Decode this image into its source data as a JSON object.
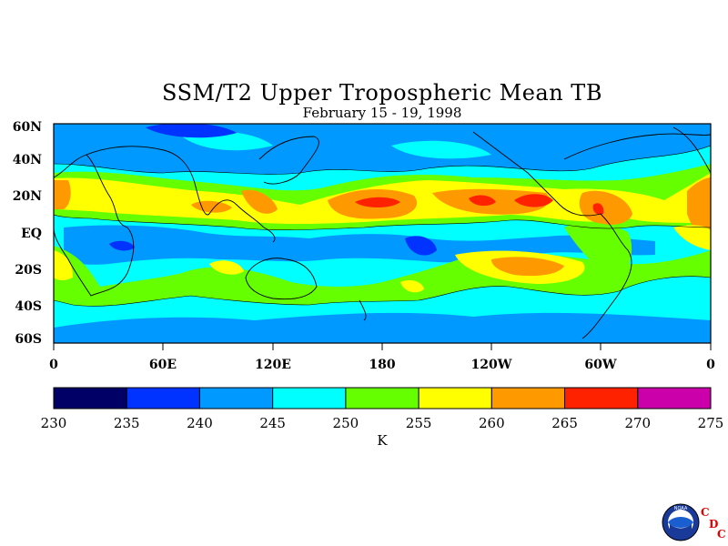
{
  "title": "SSM/T2 Upper Tropospheric Mean TB",
  "subtitle": "February 15 - 19, 1998",
  "chart_data": {
    "type": "heatmap",
    "title": "SSM/T2 Upper Tropospheric Mean TB",
    "subtitle": "February 15 - 19, 1998",
    "x_ticks": [
      "0",
      "60E",
      "120E",
      "180",
      "120W",
      "60W",
      "0"
    ],
    "y_ticks": [
      "60N",
      "40N",
      "20N",
      "EQ",
      "20S",
      "40S",
      "60S"
    ],
    "colorbar": {
      "levels": [
        230,
        235,
        240,
        245,
        250,
        255,
        260,
        265,
        270,
        275
      ],
      "labels": [
        "230",
        "235",
        "240",
        "245",
        "250",
        "255",
        "260",
        "265",
        "270",
        "275"
      ],
      "colors": [
        "#000066",
        "#0033ff",
        "#0099ff",
        "#00ffff",
        "#66ff00",
        "#ffff00",
        "#ff9900",
        "#ff2200",
        "#cc00aa"
      ],
      "unit": "K"
    }
  },
  "logo": {
    "icon": "noaa-logo-icon",
    "text": "NOAA",
    "letters": [
      "C",
      "D",
      "C"
    ]
  }
}
